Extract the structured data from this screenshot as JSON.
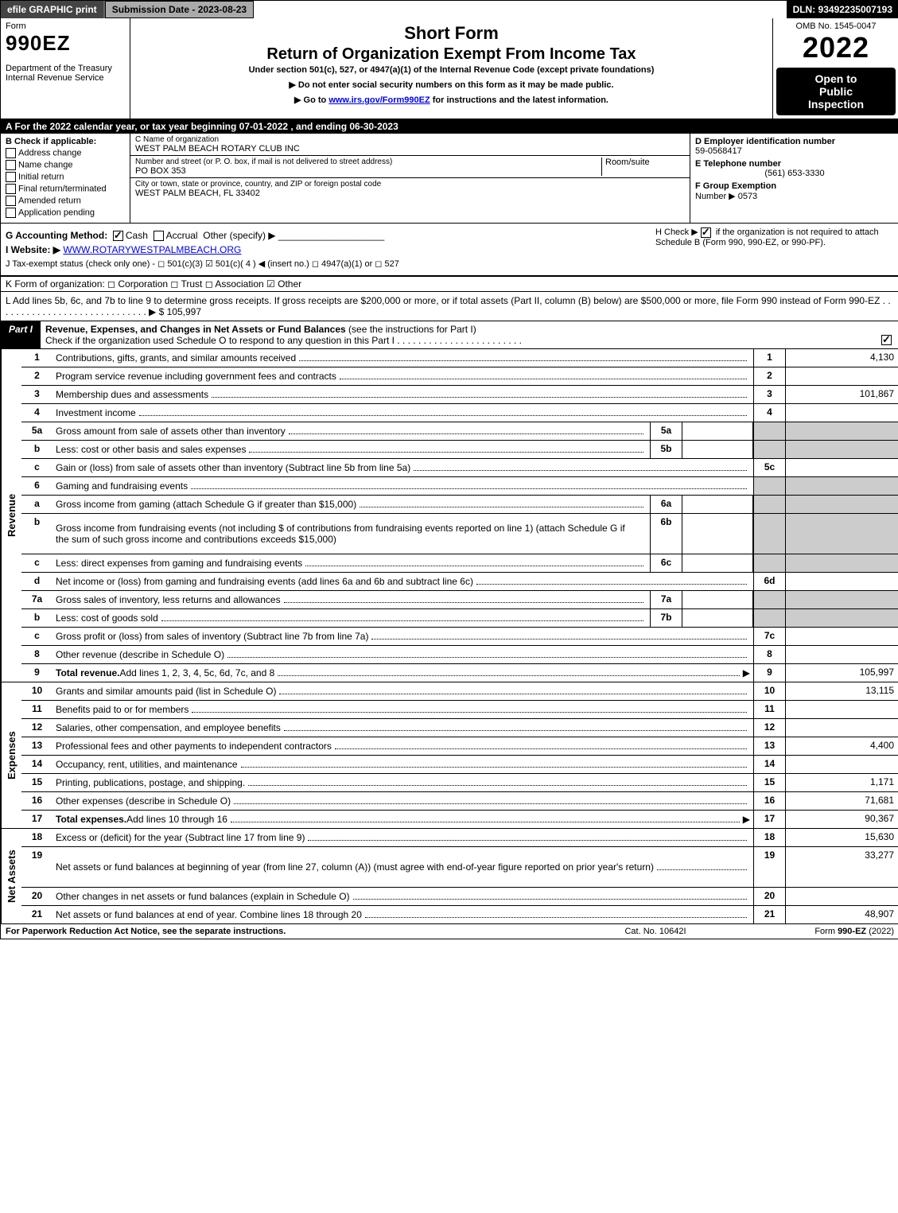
{
  "topbar": {
    "print": "efile GRAPHIC print",
    "sub_date_label": "Submission Date - 2023-08-23",
    "dln": "DLN: 93492235007193"
  },
  "header": {
    "form_word": "Form",
    "form_no": "990EZ",
    "dept": "Department of the Treasury",
    "irs": "Internal Revenue Service",
    "title1": "Short Form",
    "title2": "Return of Organization Exempt From Income Tax",
    "subscript": "Under section 501(c), 527, or 4947(a)(1) of the Internal Revenue Code (except private foundations)",
    "arrow1": "▶ Do not enter social security numbers on this form as it may be made public.",
    "arrow2_pre": "▶ Go to ",
    "arrow2_link": "www.irs.gov/Form990EZ",
    "arrow2_post": " for instructions and the latest information.",
    "omb": "OMB No. 1545-0047",
    "year": "2022",
    "public1": "Open to",
    "public2": "Public",
    "public3": "Inspection"
  },
  "row_a": "A  For the 2022 calendar year, or tax year beginning 07-01-2022 , and ending 06-30-2023",
  "section_b": {
    "title": "B  Check if applicable:",
    "items": [
      "Address change",
      "Name change",
      "Initial return",
      "Final return/terminated",
      "Amended return",
      "Application pending"
    ]
  },
  "section_c": {
    "name_lbl": "C Name of organization",
    "name_val": "WEST PALM BEACH ROTARY CLUB INC",
    "street_lbl": "Number and street (or P. O. box, if mail is not delivered to street address)",
    "room_lbl": "Room/suite",
    "street_val": "PO BOX 353",
    "city_lbl": "City or town, state or province, country, and ZIP or foreign postal code",
    "city_val": "WEST PALM BEACH, FL  33402"
  },
  "section_de": {
    "d_lbl": "D Employer identification number",
    "d_val": "59-0568417",
    "e_lbl": "E Telephone number",
    "e_val": "(561) 653-3330",
    "f_lbl": "F Group Exemption",
    "f_num_lbl": "Number  ▶",
    "f_val": "0573"
  },
  "section_g": {
    "g": "G Accounting Method:",
    "cash": "Cash",
    "accrual": "Accrual",
    "other": "Other (specify) ▶",
    "h_pre": "H  Check ▶ ",
    "h_post": " if the organization is not required to attach Schedule B (Form 990, 990-EZ, or 990-PF).",
    "i_lbl": "I Website: ▶",
    "i_val": "WWW.ROTARYWESTPALMBEACH.ORG",
    "j": "J Tax-exempt status (check only one) - ◻ 501(c)(3)  ☑ 501(c)( 4 ) ◀ (insert no.)  ◻ 4947(a)(1) or  ◻ 527",
    "k": "K Form of organization:   ◻ Corporation   ◻ Trust   ◻ Association   ☑ Other",
    "l_text": "L Add lines 5b, 6c, and 7b to line 9 to determine gross receipts. If gross receipts are $200,000 or more, or if total assets (Part II, column (B) below) are $500,000 or more, file Form 990 instead of Form 990-EZ  .  .  .  .  .  .  .  .  .  .  .  .  .  .  .  .  .  .  .  .  .  .  .  .  .  .  .  .  .  ▶ $",
    "l_val": "105,997"
  },
  "part1": {
    "label": "Part I",
    "title_main": "Revenue, Expenses, and Changes in Net Assets or Fund Balances",
    "title_sub": " (see the instructions for Part I)",
    "check_line": "Check if the organization used Schedule O to respond to any question in this Part I"
  },
  "sides": {
    "revenue": "Revenue",
    "expenses": "Expenses",
    "net": "Net Assets"
  },
  "revenue_lines": [
    {
      "n": "1",
      "desc": "Contributions, gifts, grants, and similar amounts received",
      "code": "1",
      "val": "4,130"
    },
    {
      "n": "2",
      "desc": "Program service revenue including government fees and contracts",
      "code": "2",
      "val": ""
    },
    {
      "n": "3",
      "desc": "Membership dues and assessments",
      "code": "3",
      "val": "101,867"
    },
    {
      "n": "4",
      "desc": "Investment income",
      "code": "4",
      "val": ""
    },
    {
      "n": "5a",
      "desc": "Gross amount from sale of assets other than inventory",
      "mid": "5a",
      "midval": "",
      "shaded": true
    },
    {
      "n": "b",
      "desc": "Less: cost or other basis and sales expenses",
      "mid": "5b",
      "midval": "",
      "shaded": true
    },
    {
      "n": "c",
      "desc": "Gain or (loss) from sale of assets other than inventory (Subtract line 5b from line 5a)",
      "code": "5c",
      "val": ""
    },
    {
      "n": "6",
      "desc": "Gaming and fundraising events",
      "full_shade": true
    },
    {
      "n": "a",
      "desc": "Gross income from gaming (attach Schedule G if greater than $15,000)",
      "mid": "6a",
      "midval": "",
      "shaded": true
    },
    {
      "n": "b",
      "desc": "Gross income from fundraising events (not including $                     of contributions from fundraising events reported on line 1) (attach Schedule G if the sum of such gross income and contributions exceeds $15,000)",
      "mid": "6b",
      "midval": "",
      "shaded": true,
      "tall": true
    },
    {
      "n": "c",
      "desc": "Less: direct expenses from gaming and fundraising events",
      "mid": "6c",
      "midval": "",
      "shaded": true
    },
    {
      "n": "d",
      "desc": "Net income or (loss) from gaming and fundraising events (add lines 6a and 6b and subtract line 6c)",
      "code": "6d",
      "val": ""
    },
    {
      "n": "7a",
      "desc": "Gross sales of inventory, less returns and allowances",
      "mid": "7a",
      "midval": "",
      "shaded": true
    },
    {
      "n": "b",
      "desc": "Less: cost of goods sold",
      "mid": "7b",
      "midval": "",
      "shaded": true
    },
    {
      "n": "c",
      "desc": "Gross profit or (loss) from sales of inventory (Subtract line 7b from line 7a)",
      "code": "7c",
      "val": ""
    },
    {
      "n": "8",
      "desc": "Other revenue (describe in Schedule O)",
      "code": "8",
      "val": ""
    },
    {
      "n": "9",
      "desc": "Total revenue. Add lines 1, 2, 3, 4, 5c, 6d, 7c, and 8",
      "code": "9",
      "val": "105,997",
      "bold": true,
      "arrow": true
    }
  ],
  "expense_lines": [
    {
      "n": "10",
      "desc": "Grants and similar amounts paid (list in Schedule O)",
      "code": "10",
      "val": "13,115"
    },
    {
      "n": "11",
      "desc": "Benefits paid to or for members",
      "code": "11",
      "val": ""
    },
    {
      "n": "12",
      "desc": "Salaries, other compensation, and employee benefits",
      "code": "12",
      "val": ""
    },
    {
      "n": "13",
      "desc": "Professional fees and other payments to independent contractors",
      "code": "13",
      "val": "4,400"
    },
    {
      "n": "14",
      "desc": "Occupancy, rent, utilities, and maintenance",
      "code": "14",
      "val": ""
    },
    {
      "n": "15",
      "desc": "Printing, publications, postage, and shipping.",
      "code": "15",
      "val": "1,171"
    },
    {
      "n": "16",
      "desc": "Other expenses (describe in Schedule O)",
      "code": "16",
      "val": "71,681"
    },
    {
      "n": "17",
      "desc": "Total expenses. Add lines 10 through 16",
      "code": "17",
      "val": "90,367",
      "bold": true,
      "arrow": true
    }
  ],
  "net_lines": [
    {
      "n": "18",
      "desc": "Excess or (deficit) for the year (Subtract line 17 from line 9)",
      "code": "18",
      "val": "15,630"
    },
    {
      "n": "19",
      "desc": "Net assets or fund balances at beginning of year (from line 27, column (A)) (must agree with end-of-year figure reported on prior year's return)",
      "code": "19",
      "val": "33,277",
      "tall": true
    },
    {
      "n": "20",
      "desc": "Other changes in net assets or fund balances (explain in Schedule O)",
      "code": "20",
      "val": ""
    },
    {
      "n": "21",
      "desc": "Net assets or fund balances at end of year. Combine lines 18 through 20",
      "code": "21",
      "val": "48,907"
    }
  ],
  "footer": {
    "left": "For Paperwork Reduction Act Notice, see the separate instructions.",
    "mid": "Cat. No. 10642I",
    "right_pre": "Form ",
    "right_bold": "990-EZ",
    "right_post": " (2022)"
  }
}
